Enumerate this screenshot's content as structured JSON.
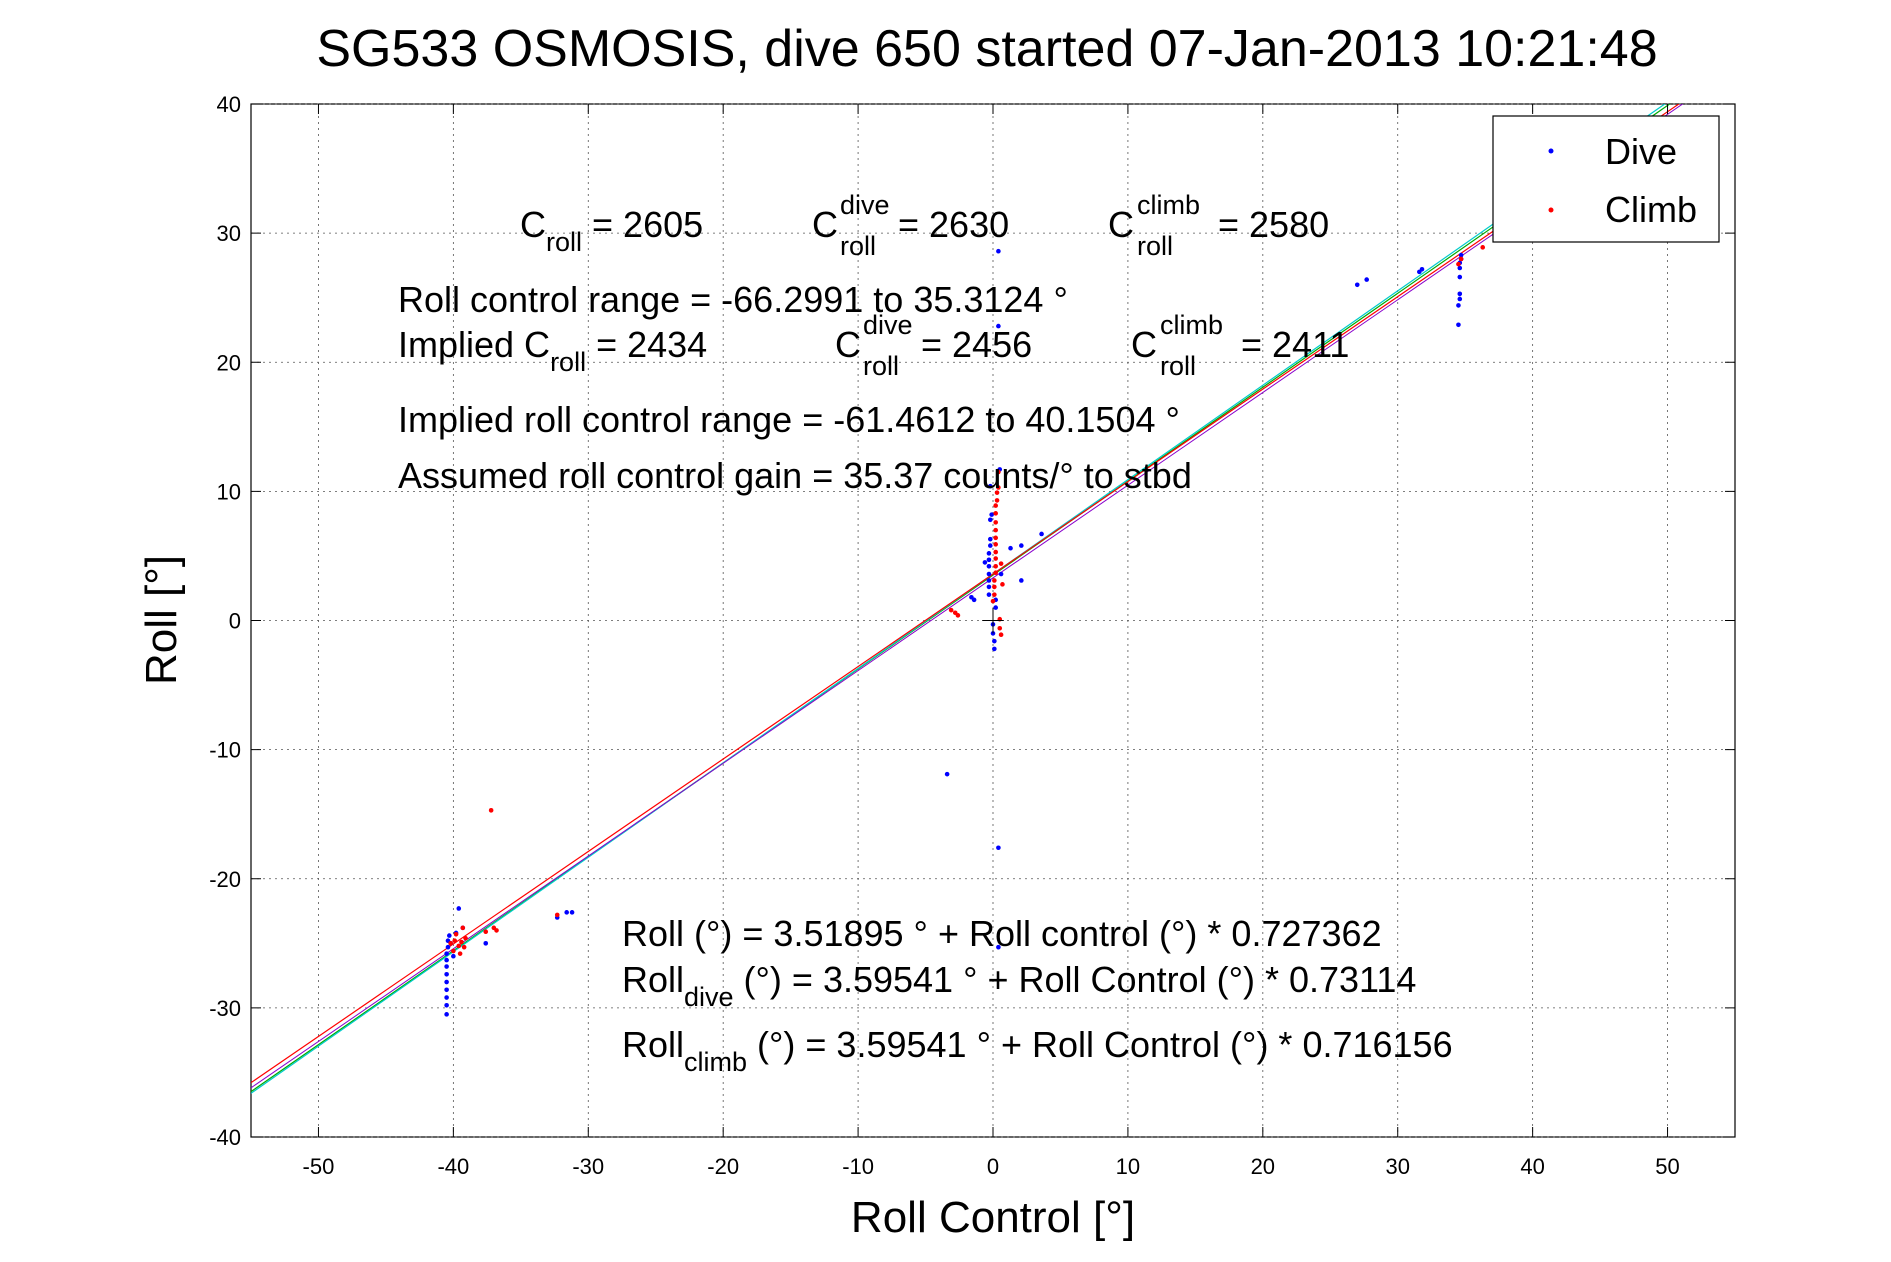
{
  "chart_data": {
    "type": "scatter",
    "title": "SG533 OSMOSIS, dive 650 started 07-Jan-2013 10:21:48",
    "xlabel": "Roll Control [°]",
    "ylabel": "Roll [°]",
    "xlim": [
      -55,
      55
    ],
    "ylim": [
      -40,
      40
    ],
    "xticks": [
      -50,
      -40,
      -30,
      -20,
      -10,
      0,
      10,
      20,
      30,
      40,
      50
    ],
    "yticks": [
      -40,
      -30,
      -20,
      -10,
      0,
      10,
      20,
      30,
      40
    ],
    "grid": true,
    "legend_position": "top-right",
    "legend": [
      "Dive",
      "Climb"
    ],
    "colors": {
      "dive": "#0000ff",
      "climb": "#ff0000",
      "fit_all": "#00aa00",
      "fit_dive": "#00cccc",
      "fit_climb": "#ff0000",
      "fit_extra": "#8800cc"
    },
    "series": [
      {
        "name": "Dive",
        "color": "#0000ff",
        "points": [
          [
            -40.5,
            -30.5
          ],
          [
            -40.5,
            -29.8
          ],
          [
            -40.5,
            -29.2
          ],
          [
            -40.5,
            -28.6
          ],
          [
            -40.5,
            -28.0
          ],
          [
            -40.5,
            -27.4
          ],
          [
            -40.5,
            -26.8
          ],
          [
            -40.5,
            -26.3
          ],
          [
            -40.5,
            -25.8
          ],
          [
            -40.4,
            -25.3
          ],
          [
            -40.4,
            -24.8
          ],
          [
            -40.3,
            -24.4
          ],
          [
            -40.2,
            -25.0
          ],
          [
            -40.0,
            -26.0
          ],
          [
            -39.8,
            -24.2
          ],
          [
            -39.6,
            -22.3
          ],
          [
            -39.3,
            -23.8
          ],
          [
            -37.6,
            -25.0
          ],
          [
            -32.3,
            -23.0
          ],
          [
            -31.6,
            -22.6
          ],
          [
            -31.2,
            -22.6
          ],
          [
            -3.4,
            -11.9
          ],
          [
            -1.6,
            1.8
          ],
          [
            -1.4,
            1.6
          ],
          [
            -0.6,
            4.5
          ],
          [
            -0.3,
            2.0
          ],
          [
            -0.3,
            2.6
          ],
          [
            -0.3,
            3.1
          ],
          [
            -0.3,
            3.6
          ],
          [
            -0.3,
            4.2
          ],
          [
            -0.3,
            4.7
          ],
          [
            -0.3,
            5.2
          ],
          [
            -0.2,
            5.8
          ],
          [
            -0.2,
            6.3
          ],
          [
            -0.2,
            7.8
          ],
          [
            -0.1,
            8.2
          ],
          [
            -0.2,
            10.4
          ],
          [
            0.0,
            -0.3
          ],
          [
            0.0,
            -1.0
          ],
          [
            0.1,
            -1.6
          ],
          [
            0.1,
            -2.2
          ],
          [
            0.2,
            1.0
          ],
          [
            0.2,
            1.6
          ],
          [
            0.4,
            28.6
          ],
          [
            0.4,
            -17.6
          ],
          [
            0.4,
            -25.3
          ],
          [
            0.4,
            22.8
          ],
          [
            0.5,
            11.7
          ],
          [
            0.6,
            3.6
          ],
          [
            1.3,
            5.6
          ],
          [
            2.1,
            3.1
          ],
          [
            2.1,
            5.8
          ],
          [
            3.6,
            6.7
          ],
          [
            27.0,
            26.0
          ],
          [
            27.7,
            26.4
          ],
          [
            31.6,
            27.0
          ],
          [
            31.8,
            27.2
          ],
          [
            34.5,
            22.9
          ],
          [
            34.5,
            24.4
          ],
          [
            34.6,
            24.9
          ],
          [
            34.6,
            25.3
          ],
          [
            34.6,
            26.6
          ],
          [
            34.6,
            27.3
          ],
          [
            34.6,
            27.7
          ],
          [
            34.7,
            28.0
          ],
          [
            34.7,
            28.3
          ]
        ]
      },
      {
        "name": "Climb",
        "color": "#ff0000",
        "points": [
          [
            -40.2,
            -25.0
          ],
          [
            -40.0,
            -25.6
          ],
          [
            -39.9,
            -24.8
          ],
          [
            -39.8,
            -24.3
          ],
          [
            -39.6,
            -25.2
          ],
          [
            -39.5,
            -25.8
          ],
          [
            -39.4,
            -24.9
          ],
          [
            -39.3,
            -23.8
          ],
          [
            -39.2,
            -25.3
          ],
          [
            -39.1,
            -24.6
          ],
          [
            -37.6,
            -24.1
          ],
          [
            -37.2,
            -14.7
          ],
          [
            -37.0,
            -23.8
          ],
          [
            -36.8,
            -24.0
          ],
          [
            -32.3,
            -22.8
          ],
          [
            -3.1,
            0.8
          ],
          [
            -2.8,
            0.6
          ],
          [
            -2.6,
            0.4
          ],
          [
            0.0,
            1.5
          ],
          [
            0.1,
            2.0
          ],
          [
            0.1,
            2.6
          ],
          [
            0.1,
            3.1
          ],
          [
            0.2,
            3.7
          ],
          [
            0.2,
            4.2
          ],
          [
            0.2,
            4.8
          ],
          [
            0.2,
            5.3
          ],
          [
            0.2,
            5.9
          ],
          [
            0.2,
            6.4
          ],
          [
            0.2,
            7.0
          ],
          [
            0.2,
            7.6
          ],
          [
            0.2,
            8.3
          ],
          [
            0.2,
            8.9
          ],
          [
            0.3,
            9.3
          ],
          [
            0.3,
            9.9
          ],
          [
            0.4,
            10.3
          ],
          [
            0.4,
            11.5
          ],
          [
            0.5,
            0.1
          ],
          [
            0.5,
            -0.6
          ],
          [
            0.6,
            -1.1
          ],
          [
            0.6,
            4.4
          ],
          [
            0.7,
            2.8
          ],
          [
            34.5,
            27.6
          ],
          [
            34.7,
            28.0
          ],
          [
            36.3,
            28.9
          ]
        ]
      }
    ],
    "fits": [
      {
        "name": "all",
        "intercept": 3.51895,
        "slope": 0.727362
      },
      {
        "name": "dive",
        "intercept": 3.59541,
        "slope": 0.73114
      },
      {
        "name": "climb",
        "intercept": 3.59541,
        "slope": 0.716156
      }
    ],
    "annotations": {
      "c_roll": "C",
      "c_roll_sub": "roll",
      "c_roll_val": " = 2605",
      "c_dive_sup": "dive",
      "c_dive_val": " = 2630",
      "c_climb_sup": "climb",
      "c_climb_val": " = 2580",
      "range": "Roll control range = -66.2991 to 35.3124 °",
      "implied_prefix": "Implied C",
      "implied_val": " = 2434",
      "implied_dive_val": " = 2456",
      "implied_climb_val": " = 2411",
      "implied_range": "Implied roll control range = -61.4612 to 40.1504 °",
      "gain": "Assumed roll control gain = 35.37 counts/° to stbd",
      "fit_all_text": "Roll (°) = 3.51895 ° + Roll control (°) * 0.727362",
      "fit_dive_prefix": "Roll",
      "fit_dive_sub": "dive",
      "fit_dive_rest": " (°) = 3.59541 ° + Roll Control (°) * 0.73114",
      "fit_climb_prefix": "Roll",
      "fit_climb_sub": "climb",
      "fit_climb_rest": " (°) = 3.59541 ° + Roll Control (°) * 0.716156"
    }
  }
}
